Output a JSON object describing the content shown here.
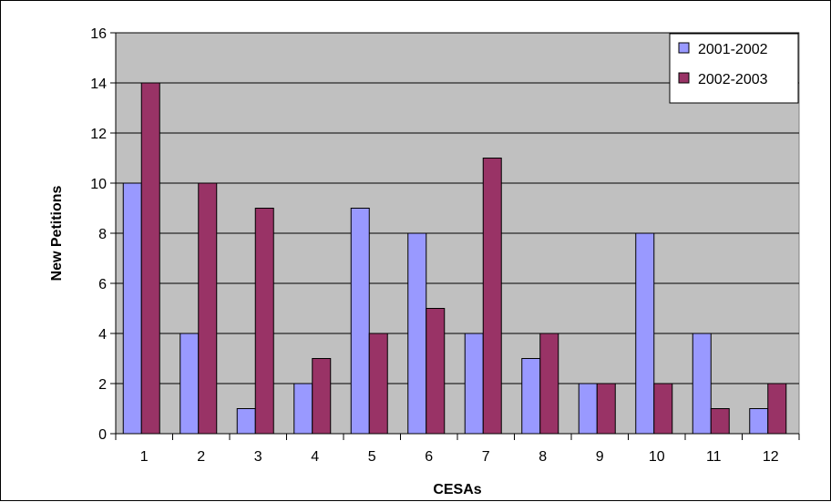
{
  "chart_data": {
    "type": "bar",
    "title": "",
    "xlabel": "CESAs",
    "ylabel": "New Petitions",
    "categories": [
      "1",
      "2",
      "3",
      "4",
      "5",
      "6",
      "7",
      "8",
      "9",
      "10",
      "11",
      "12"
    ],
    "series": [
      {
        "name": "2001-2002",
        "values": [
          10,
          4,
          1,
          2,
          9,
          8,
          4,
          3,
          2,
          8,
          4,
          1
        ]
      },
      {
        "name": "2002-2003",
        "values": [
          14,
          10,
          9,
          3,
          4,
          5,
          11,
          4,
          2,
          2,
          1,
          2
        ]
      }
    ],
    "ylim": [
      0,
      16
    ],
    "yticks": [
      0,
      2,
      4,
      6,
      8,
      10,
      12,
      14,
      16
    ],
    "grid": true,
    "legend_position": "top-right",
    "colors": {
      "plot_background": "#C0C0C0",
      "series": [
        "#9999FF",
        "#993366"
      ]
    }
  }
}
